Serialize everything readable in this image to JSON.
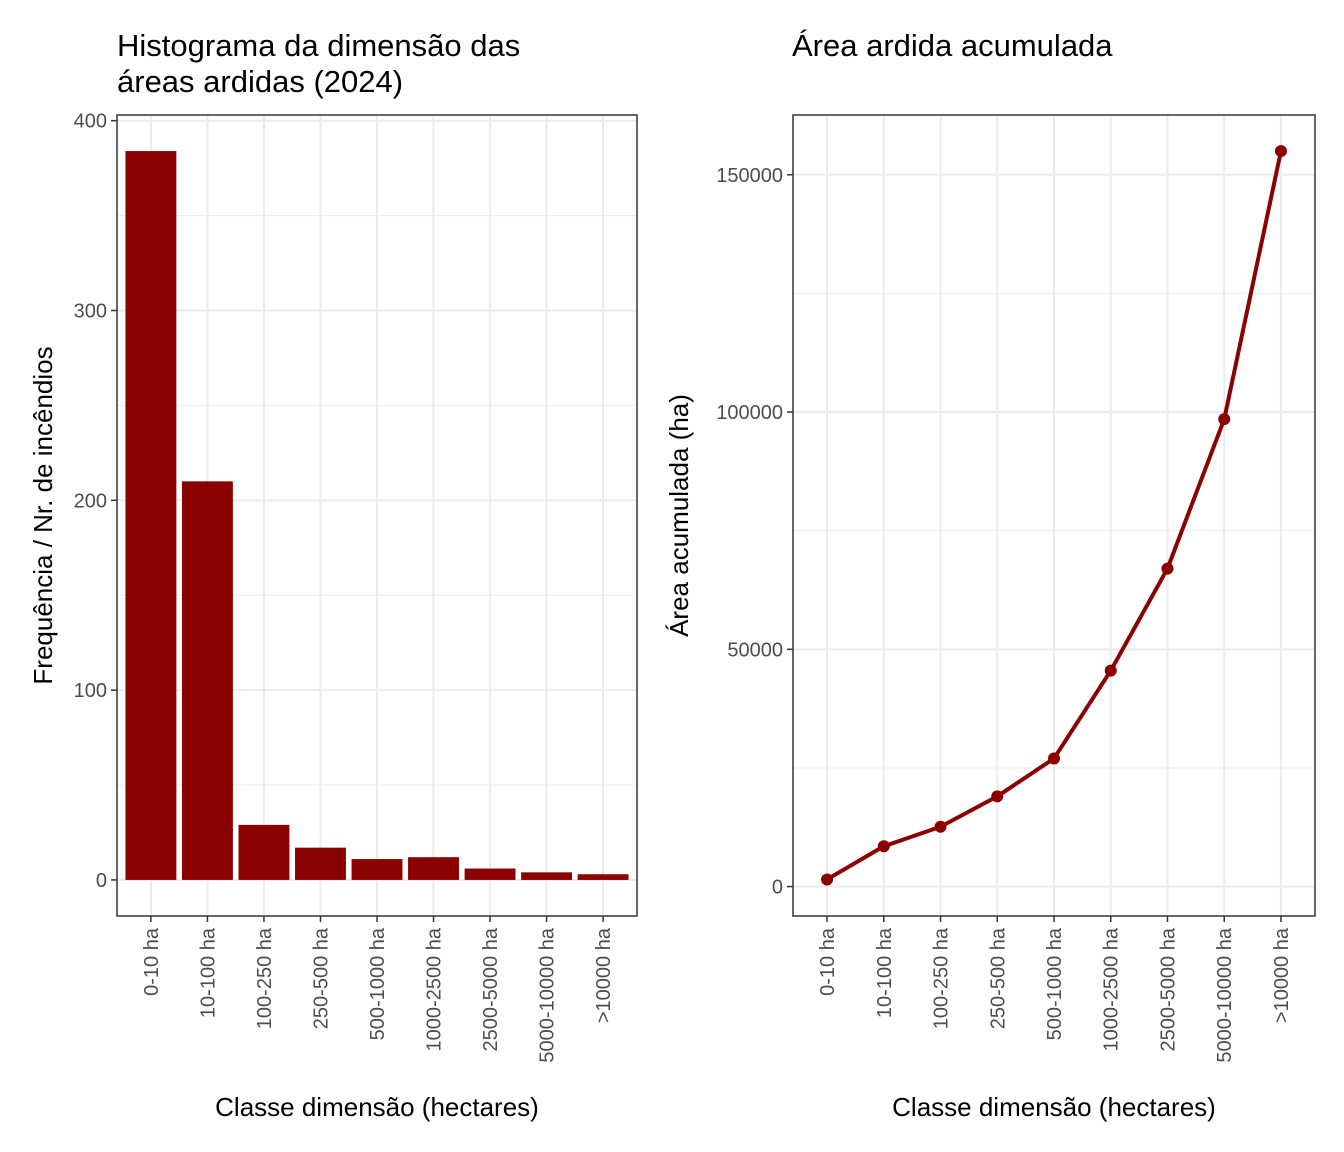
{
  "chart_data": [
    {
      "type": "bar",
      "title_line1": "Histograma da dimensão das",
      "title_line2": "áreas ardidas (2024)",
      "xlabel": "Classe dimensão (hectares)",
      "ylabel": "Frequência / Nr. de incêndios",
      "categories": [
        "0-10 ha",
        "10-100 ha",
        "100-250 ha",
        "250-500 ha",
        "500-1000 ha",
        "1000-2500 ha",
        "2500-5000 ha",
        "5000-10000 ha",
        ">10000 ha"
      ],
      "values": [
        384,
        210,
        29,
        17,
        11,
        12,
        6,
        4,
        3
      ],
      "ylim": [
        -19,
        403
      ],
      "yticks": [
        0,
        100,
        200,
        300,
        400
      ],
      "grid": true,
      "color": "#8B0000"
    },
    {
      "type": "line",
      "title": "Área ardida acumulada",
      "xlabel": "Classe dimensão (hectares)",
      "ylabel": "Área acumulada (ha)",
      "categories": [
        "0-10 ha",
        "10-100 ha",
        "100-250 ha",
        "250-500 ha",
        "500-1000 ha",
        "1000-2500 ha",
        "2500-5000 ha",
        "5000-10000 ha",
        ">10000 ha"
      ],
      "values": [
        1500,
        8500,
        12600,
        19000,
        27000,
        45500,
        67000,
        98500,
        155000
      ],
      "ylim": [
        -6200,
        162600
      ],
      "yticks": [
        0,
        50000,
        100000,
        150000
      ],
      "ytick_labels": [
        "0",
        "50000",
        "100000",
        "150000"
      ],
      "grid": true,
      "color": "#8B0000"
    }
  ]
}
